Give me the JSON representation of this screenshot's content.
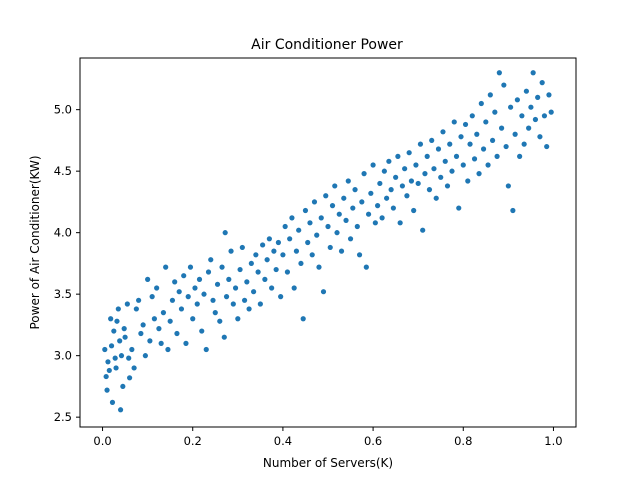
{
  "chart_data": {
    "type": "scatter",
    "title": "Air Conditioner Power",
    "xlabel": "Number of Servers(K)",
    "ylabel": "Power of Air Conditioner(KW)",
    "xlim": [
      -0.05,
      1.05
    ],
    "ylim": [
      2.42,
      5.42
    ],
    "xticks": [
      0.0,
      0.2,
      0.4,
      0.6,
      0.8,
      1.0
    ],
    "xtick_labels": [
      "0.0",
      "0.2",
      "0.4",
      "0.6",
      "0.8",
      "1.0"
    ],
    "yticks": [
      2.5,
      3.0,
      3.5,
      4.0,
      4.5,
      5.0
    ],
    "ytick_labels": [
      "2.5",
      "3.0",
      "3.5",
      "4.0",
      "4.5",
      "5.0"
    ],
    "grid": false,
    "marker_color": "#1f77b4",
    "series": [
      {
        "points": [
          [
            0.005,
            3.05
          ],
          [
            0.008,
            2.83
          ],
          [
            0.01,
            2.72
          ],
          [
            0.012,
            2.95
          ],
          [
            0.015,
            2.88
          ],
          [
            0.018,
            3.3
          ],
          [
            0.02,
            3.08
          ],
          [
            0.022,
            2.62
          ],
          [
            0.025,
            3.2
          ],
          [
            0.028,
            2.98
          ],
          [
            0.03,
            2.9
          ],
          [
            0.032,
            3.28
          ],
          [
            0.035,
            3.38
          ],
          [
            0.038,
            3.12
          ],
          [
            0.04,
            2.56
          ],
          [
            0.042,
            3.0
          ],
          [
            0.045,
            2.75
          ],
          [
            0.048,
            3.22
          ],
          [
            0.05,
            3.15
          ],
          [
            0.055,
            3.42
          ],
          [
            0.058,
            2.98
          ],
          [
            0.06,
            2.82
          ],
          [
            0.065,
            3.05
          ],
          [
            0.07,
            2.9
          ],
          [
            0.075,
            3.38
          ],
          [
            0.08,
            3.45
          ],
          [
            0.085,
            3.18
          ],
          [
            0.09,
            3.25
          ],
          [
            0.095,
            3.0
          ],
          [
            0.1,
            3.62
          ],
          [
            0.105,
            3.12
          ],
          [
            0.11,
            3.48
          ],
          [
            0.115,
            3.3
          ],
          [
            0.12,
            3.55
          ],
          [
            0.125,
            3.22
          ],
          [
            0.13,
            3.1
          ],
          [
            0.135,
            3.35
          ],
          [
            0.14,
            3.72
          ],
          [
            0.145,
            3.05
          ],
          [
            0.15,
            3.28
          ],
          [
            0.155,
            3.45
          ],
          [
            0.16,
            3.6
          ],
          [
            0.165,
            3.18
          ],
          [
            0.17,
            3.52
          ],
          [
            0.175,
            3.38
          ],
          [
            0.18,
            3.65
          ],
          [
            0.185,
            3.1
          ],
          [
            0.19,
            3.48
          ],
          [
            0.195,
            3.72
          ],
          [
            0.2,
            3.3
          ],
          [
            0.205,
            3.55
          ],
          [
            0.21,
            3.42
          ],
          [
            0.215,
            3.62
          ],
          [
            0.22,
            3.2
          ],
          [
            0.225,
            3.5
          ],
          [
            0.23,
            3.05
          ],
          [
            0.235,
            3.68
          ],
          [
            0.24,
            3.78
          ],
          [
            0.245,
            3.45
          ],
          [
            0.25,
            3.35
          ],
          [
            0.255,
            3.58
          ],
          [
            0.26,
            3.28
          ],
          [
            0.265,
            3.72
          ],
          [
            0.27,
            3.15
          ],
          [
            0.272,
            4.0
          ],
          [
            0.275,
            3.48
          ],
          [
            0.28,
            3.62
          ],
          [
            0.285,
            3.85
          ],
          [
            0.29,
            3.42
          ],
          [
            0.295,
            3.55
          ],
          [
            0.3,
            3.3
          ],
          [
            0.305,
            3.7
          ],
          [
            0.31,
            3.88
          ],
          [
            0.315,
            3.45
          ],
          [
            0.32,
            3.6
          ],
          [
            0.325,
            3.38
          ],
          [
            0.33,
            3.75
          ],
          [
            0.335,
            3.52
          ],
          [
            0.34,
            3.82
          ],
          [
            0.345,
            3.68
          ],
          [
            0.35,
            3.42
          ],
          [
            0.355,
            3.9
          ],
          [
            0.36,
            3.62
          ],
          [
            0.365,
            3.78
          ],
          [
            0.37,
            3.95
          ],
          [
            0.375,
            3.55
          ],
          [
            0.38,
            3.85
          ],
          [
            0.385,
            3.7
          ],
          [
            0.39,
            3.92
          ],
          [
            0.395,
            3.48
          ],
          [
            0.4,
            3.82
          ],
          [
            0.405,
            4.05
          ],
          [
            0.41,
            3.68
          ],
          [
            0.415,
            3.95
          ],
          [
            0.42,
            4.12
          ],
          [
            0.425,
            3.55
          ],
          [
            0.43,
            3.85
          ],
          [
            0.435,
            4.02
          ],
          [
            0.44,
            3.75
          ],
          [
            0.445,
            3.3
          ],
          [
            0.45,
            4.18
          ],
          [
            0.455,
            3.92
          ],
          [
            0.46,
            4.08
          ],
          [
            0.465,
            3.82
          ],
          [
            0.47,
            4.25
          ],
          [
            0.475,
            3.98
          ],
          [
            0.48,
            3.72
          ],
          [
            0.485,
            4.12
          ],
          [
            0.49,
            3.52
          ],
          [
            0.495,
            4.3
          ],
          [
            0.5,
            4.05
          ],
          [
            0.505,
            3.88
          ],
          [
            0.51,
            4.22
          ],
          [
            0.515,
            4.38
          ],
          [
            0.52,
            4.0
          ],
          [
            0.525,
            4.15
          ],
          [
            0.53,
            3.85
          ],
          [
            0.535,
            4.28
          ],
          [
            0.54,
            4.1
          ],
          [
            0.545,
            4.42
          ],
          [
            0.55,
            3.95
          ],
          [
            0.555,
            4.2
          ],
          [
            0.56,
            4.35
          ],
          [
            0.565,
            4.05
          ],
          [
            0.57,
            3.82
          ],
          [
            0.575,
            4.25
          ],
          [
            0.58,
            4.48
          ],
          [
            0.585,
            3.72
          ],
          [
            0.59,
            4.15
          ],
          [
            0.595,
            4.32
          ],
          [
            0.6,
            4.55
          ],
          [
            0.605,
            4.08
          ],
          [
            0.61,
            4.22
          ],
          [
            0.615,
            4.4
          ],
          [
            0.62,
            4.12
          ],
          [
            0.625,
            4.5
          ],
          [
            0.63,
            4.28
          ],
          [
            0.635,
            4.58
          ],
          [
            0.64,
            4.35
          ],
          [
            0.645,
            4.2
          ],
          [
            0.65,
            4.45
          ],
          [
            0.655,
            4.62
          ],
          [
            0.66,
            4.08
          ],
          [
            0.665,
            4.38
          ],
          [
            0.67,
            4.52
          ],
          [
            0.675,
            4.3
          ],
          [
            0.68,
            4.65
          ],
          [
            0.685,
            4.42
          ],
          [
            0.69,
            4.18
          ],
          [
            0.695,
            4.55
          ],
          [
            0.7,
            4.4
          ],
          [
            0.705,
            4.72
          ],
          [
            0.71,
            4.02
          ],
          [
            0.715,
            4.48
          ],
          [
            0.72,
            4.62
          ],
          [
            0.725,
            4.35
          ],
          [
            0.73,
            4.75
          ],
          [
            0.735,
            4.52
          ],
          [
            0.74,
            4.28
          ],
          [
            0.745,
            4.68
          ],
          [
            0.75,
            4.45
          ],
          [
            0.755,
            4.82
          ],
          [
            0.76,
            4.58
          ],
          [
            0.765,
            4.38
          ],
          [
            0.77,
            4.72
          ],
          [
            0.775,
            4.5
          ],
          [
            0.78,
            4.9
          ],
          [
            0.785,
            4.62
          ],
          [
            0.79,
            4.2
          ],
          [
            0.795,
            4.78
          ],
          [
            0.8,
            4.55
          ],
          [
            0.805,
            4.88
          ],
          [
            0.81,
            4.42
          ],
          [
            0.815,
            4.72
          ],
          [
            0.82,
            4.95
          ],
          [
            0.825,
            4.6
          ],
          [
            0.83,
            4.8
          ],
          [
            0.835,
            4.48
          ],
          [
            0.84,
            5.05
          ],
          [
            0.845,
            4.68
          ],
          [
            0.85,
            4.9
          ],
          [
            0.855,
            4.55
          ],
          [
            0.86,
            5.12
          ],
          [
            0.865,
            4.75
          ],
          [
            0.87,
            4.98
          ],
          [
            0.875,
            4.62
          ],
          [
            0.88,
            5.3
          ],
          [
            0.885,
            4.85
          ],
          [
            0.89,
            5.2
          ],
          [
            0.895,
            4.7
          ],
          [
            0.9,
            4.38
          ],
          [
            0.905,
            5.02
          ],
          [
            0.91,
            4.18
          ],
          [
            0.915,
            4.8
          ],
          [
            0.92,
            5.08
          ],
          [
            0.925,
            4.62
          ],
          [
            0.93,
            4.95
          ],
          [
            0.935,
            4.72
          ],
          [
            0.94,
            5.15
          ],
          [
            0.945,
            4.85
          ],
          [
            0.95,
            5.02
          ],
          [
            0.955,
            5.3
          ],
          [
            0.96,
            4.92
          ],
          [
            0.965,
            5.1
          ],
          [
            0.97,
            4.78
          ],
          [
            0.975,
            5.22
          ],
          [
            0.98,
            4.95
          ],
          [
            0.985,
            4.7
          ],
          [
            0.99,
            5.12
          ],
          [
            0.995,
            4.98
          ]
        ]
      }
    ]
  }
}
